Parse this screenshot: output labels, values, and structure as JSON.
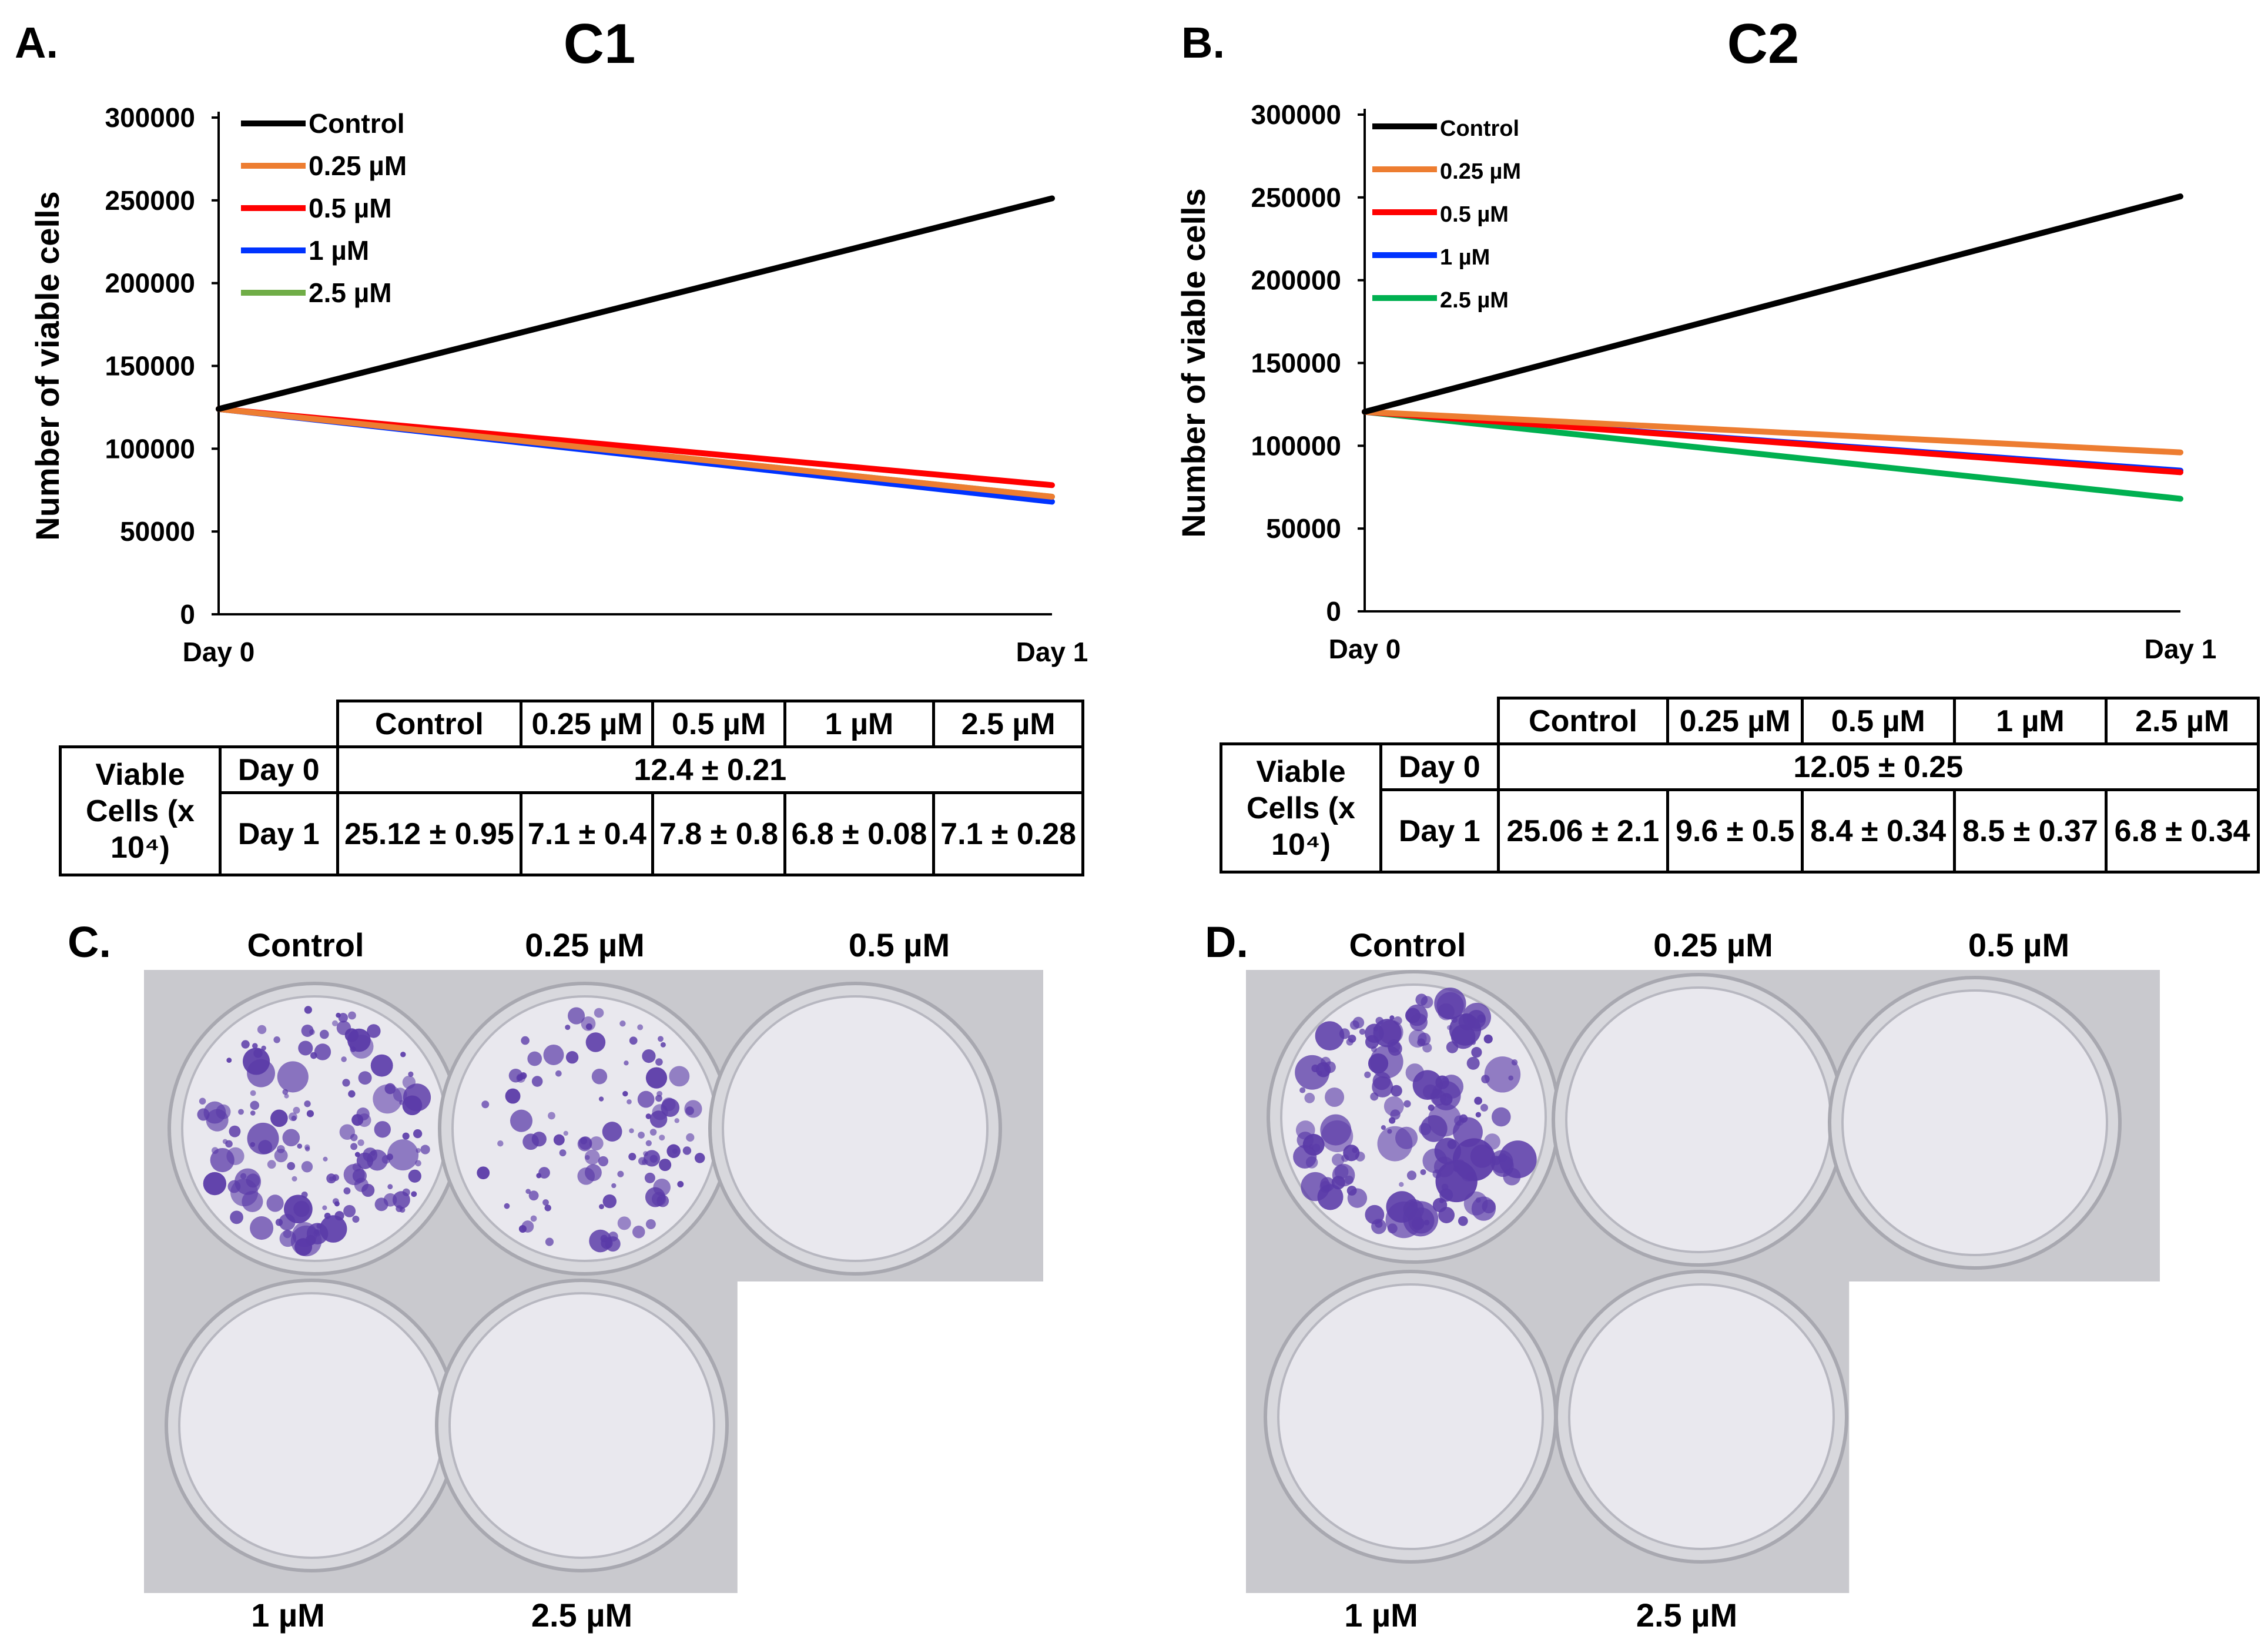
{
  "panels": {
    "a": "A.",
    "b": "B.",
    "c": "C.",
    "d": "D."
  },
  "chart_data": [
    {
      "type": "line",
      "title": "C1",
      "xlabel": "",
      "ylabel": "Number of viable cells",
      "x": [
        "Day 0",
        "Day 1"
      ],
      "ylim": [
        0,
        300000
      ],
      "yticks": [
        0,
        50000,
        100000,
        150000,
        200000,
        250000,
        300000
      ],
      "legend_position": "top-left",
      "series": [
        {
          "name": "Control",
          "color": "#000000",
          "values": [
            124000,
            251200
          ]
        },
        {
          "name": "0.25 µM",
          "color": "#ED7D31",
          "values": [
            124000,
            71000
          ]
        },
        {
          "name": "0.5 µM",
          "color": "#FF0000",
          "values": [
            124000,
            78000
          ]
        },
        {
          "name": "1 µM",
          "color": "#0033FF",
          "values": [
            124000,
            68000
          ]
        },
        {
          "name": "2.5 µM",
          "color": "#70AD47",
          "values": [
            124000,
            71000
          ]
        }
      ]
    },
    {
      "type": "line",
      "title": "C2",
      "xlabel": "",
      "ylabel": "Number of viable cells",
      "x": [
        "Day 0",
        "Day 1"
      ],
      "ylim": [
        0,
        300000
      ],
      "yticks": [
        0,
        50000,
        100000,
        150000,
        200000,
        250000,
        300000
      ],
      "legend_position": "top-left",
      "series": [
        {
          "name": "Control",
          "color": "#000000",
          "values": [
            120500,
            250600
          ]
        },
        {
          "name": "0.25 µM",
          "color": "#ED7D31",
          "values": [
            120500,
            96000
          ]
        },
        {
          "name": "0.5 µM",
          "color": "#FF0000",
          "values": [
            120500,
            84000
          ]
        },
        {
          "name": "1 µM",
          "color": "#0033FF",
          "values": [
            120500,
            85000
          ]
        },
        {
          "name": "2.5 µM",
          "color": "#00B050",
          "values": [
            120500,
            68000
          ]
        }
      ]
    }
  ],
  "tables": [
    {
      "headers": [
        "Control",
        "0.25 µM",
        "0.5 µM",
        "1 µM",
        "2.5 µM"
      ],
      "row_group": "Viable Cells (x 10⁴)",
      "day0_label": "Day 0",
      "day0_value": "12.4 ± 0.21",
      "day1_label": "Day 1",
      "day1_values": [
        "25.12 ± 0.95",
        "7.1 ± 0.4",
        "7.8 ± 0.8",
        "6.8 ± 0.08",
        "7.1 ± 0.28"
      ]
    },
    {
      "headers": [
        "Control",
        "0.25 µM",
        "0.5 µM",
        "1 µM",
        "2.5 µM"
      ],
      "row_group": "Viable Cells (x 10⁴)",
      "day0_label": "Day 0",
      "day0_value": "12.05 ± 0.25",
      "day1_label": "Day 1",
      "day1_values": [
        "25.06 ± 2.1",
        "9.6 ± 0.5",
        "8.4 ± 0.34",
        "8.5 ± 0.37",
        "6.8 ± 0.34"
      ]
    }
  ],
  "plates": [
    {
      "top_labels": [
        "Control",
        "0.25 µM",
        "0.5 µM"
      ],
      "bottom_labels": [
        "1 µM",
        "2.5 µM"
      ]
    },
    {
      "top_labels": [
        "Control",
        "0.25 µM",
        "0.5 µM"
      ],
      "bottom_labels": [
        "1 µM",
        "2.5 µM"
      ]
    }
  ],
  "colors": {
    "plate_bg": "#c9c9ce",
    "crystal_violet": "#5a3aa8"
  }
}
